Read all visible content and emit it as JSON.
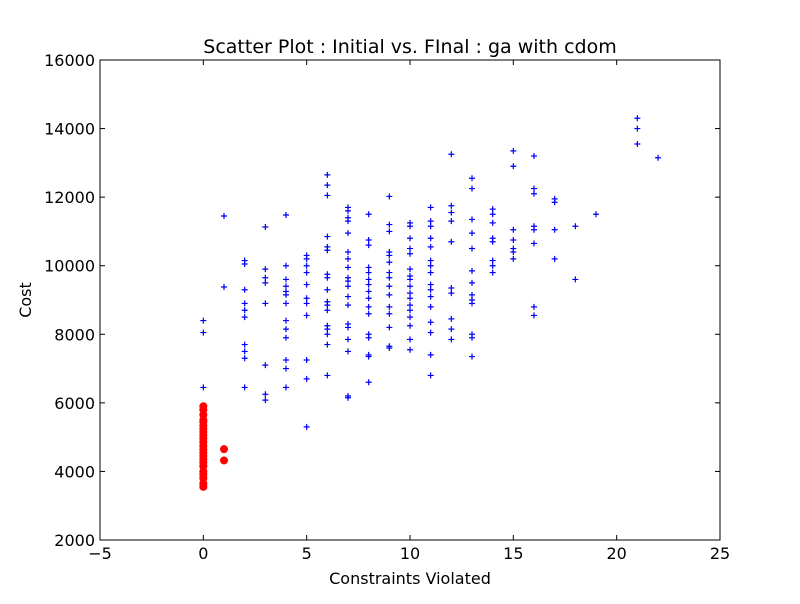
{
  "chart_data": {
    "type": "scatter",
    "title": "Scatter Plot : Initial vs. FInal : ga with cdom",
    "xlabel": "Constraints Violated",
    "ylabel": "Cost",
    "xlim": [
      -5,
      25
    ],
    "ylim": [
      2000,
      16000
    ],
    "xticks": [
      -5,
      0,
      5,
      10,
      15,
      20,
      25
    ],
    "xtick_labels": [
      "−5",
      "0",
      "5",
      "10",
      "15",
      "20",
      "25"
    ],
    "yticks": [
      2000,
      4000,
      6000,
      8000,
      10000,
      12000,
      14000,
      16000
    ],
    "ytick_labels": [
      "2000",
      "4000",
      "6000",
      "8000",
      "10000",
      "12000",
      "14000",
      "16000"
    ],
    "grid": false,
    "legend": "none",
    "series": [
      {
        "marker": "plus",
        "color": "#0000ff",
        "points": [
          [
            0,
            8400
          ],
          [
            0,
            8050
          ],
          [
            0,
            6450
          ],
          [
            1,
            11450
          ],
          [
            1,
            9380
          ],
          [
            2,
            10150
          ],
          [
            2,
            10050
          ],
          [
            2,
            9300
          ],
          [
            2,
            8900
          ],
          [
            2,
            8700
          ],
          [
            2,
            8500
          ],
          [
            2,
            7700
          ],
          [
            2,
            7500
          ],
          [
            2,
            7300
          ],
          [
            2,
            6450
          ],
          [
            3,
            11130
          ],
          [
            3,
            9900
          ],
          [
            3,
            9650
          ],
          [
            3,
            9500
          ],
          [
            3,
            8900
          ],
          [
            3,
            7100
          ],
          [
            3,
            6250
          ],
          [
            3,
            6080
          ],
          [
            4,
            11480
          ],
          [
            4,
            10000
          ],
          [
            4,
            9600
          ],
          [
            4,
            9400
          ],
          [
            4,
            9250
          ],
          [
            4,
            9150
          ],
          [
            4,
            8900
          ],
          [
            4,
            8400
          ],
          [
            4,
            8150
          ],
          [
            4,
            7900
          ],
          [
            4,
            7250
          ],
          [
            4,
            7000
          ],
          [
            4,
            6450
          ],
          [
            5,
            10300
          ],
          [
            5,
            10200
          ],
          [
            5,
            10000
          ],
          [
            5,
            9800
          ],
          [
            5,
            9450
          ],
          [
            5,
            9050
          ],
          [
            5,
            8900
          ],
          [
            5,
            8550
          ],
          [
            5,
            7250
          ],
          [
            5,
            6700
          ],
          [
            5,
            5300
          ],
          [
            6,
            12650
          ],
          [
            6,
            12350
          ],
          [
            6,
            12050
          ],
          [
            6,
            10850
          ],
          [
            6,
            10550
          ],
          [
            6,
            10450
          ],
          [
            6,
            9750
          ],
          [
            6,
            9650
          ],
          [
            6,
            9300
          ],
          [
            6,
            8950
          ],
          [
            6,
            8850
          ],
          [
            6,
            8700
          ],
          [
            6,
            8250
          ],
          [
            6,
            8150
          ],
          [
            6,
            8000
          ],
          [
            6,
            7700
          ],
          [
            6,
            6800
          ],
          [
            7,
            11700
          ],
          [
            7,
            11600
          ],
          [
            7,
            11400
          ],
          [
            7,
            11300
          ],
          [
            7,
            10950
          ],
          [
            7,
            10400
          ],
          [
            7,
            10200
          ],
          [
            7,
            9950
          ],
          [
            7,
            9650
          ],
          [
            7,
            9550
          ],
          [
            7,
            9400
          ],
          [
            7,
            9100
          ],
          [
            7,
            8850
          ],
          [
            7,
            8300
          ],
          [
            7,
            8200
          ],
          [
            7,
            7850
          ],
          [
            7,
            7500
          ],
          [
            7,
            6200
          ],
          [
            7,
            6150
          ],
          [
            8,
            11500
          ],
          [
            8,
            10750
          ],
          [
            8,
            10600
          ],
          [
            8,
            9950
          ],
          [
            8,
            9800
          ],
          [
            8,
            9600
          ],
          [
            8,
            9450
          ],
          [
            8,
            9250
          ],
          [
            8,
            9050
          ],
          [
            8,
            8800
          ],
          [
            8,
            8600
          ],
          [
            8,
            8000
          ],
          [
            8,
            7900
          ],
          [
            8,
            7400
          ],
          [
            8,
            7350
          ],
          [
            8,
            6600
          ],
          [
            9,
            12020
          ],
          [
            9,
            11200
          ],
          [
            9,
            11000
          ],
          [
            9,
            10400
          ],
          [
            9,
            10300
          ],
          [
            9,
            10100
          ],
          [
            9,
            9800
          ],
          [
            9,
            9650
          ],
          [
            9,
            9400
          ],
          [
            9,
            9150
          ],
          [
            9,
            8800
          ],
          [
            9,
            8600
          ],
          [
            9,
            8200
          ],
          [
            9,
            7650
          ],
          [
            9,
            7600
          ],
          [
            10,
            11250
          ],
          [
            10,
            11150
          ],
          [
            10,
            10800
          ],
          [
            10,
            10500
          ],
          [
            10,
            10350
          ],
          [
            10,
            9900
          ],
          [
            10,
            9700
          ],
          [
            10,
            9600
          ],
          [
            10,
            9400
          ],
          [
            10,
            9200
          ],
          [
            10,
            9050
          ],
          [
            10,
            8850
          ],
          [
            10,
            8700
          ],
          [
            10,
            8500
          ],
          [
            10,
            8250
          ],
          [
            10,
            7850
          ],
          [
            10,
            7550
          ],
          [
            11,
            11700
          ],
          [
            11,
            11300
          ],
          [
            11,
            11150
          ],
          [
            11,
            10800
          ],
          [
            11,
            10550
          ],
          [
            11,
            10150
          ],
          [
            11,
            10000
          ],
          [
            11,
            9800
          ],
          [
            11,
            9450
          ],
          [
            11,
            9300
          ],
          [
            11,
            9100
          ],
          [
            11,
            8800
          ],
          [
            11,
            8350
          ],
          [
            11,
            8050
          ],
          [
            11,
            7400
          ],
          [
            11,
            6800
          ],
          [
            12,
            13250
          ],
          [
            12,
            11750
          ],
          [
            12,
            11550
          ],
          [
            12,
            11300
          ],
          [
            12,
            10700
          ],
          [
            12,
            9350
          ],
          [
            12,
            9200
          ],
          [
            12,
            8450
          ],
          [
            12,
            8150
          ],
          [
            12,
            7850
          ],
          [
            13,
            12550
          ],
          [
            13,
            12250
          ],
          [
            13,
            11350
          ],
          [
            13,
            10950
          ],
          [
            13,
            10500
          ],
          [
            13,
            9850
          ],
          [
            13,
            9500
          ],
          [
            13,
            9150
          ],
          [
            13,
            9000
          ],
          [
            13,
            8900
          ],
          [
            13,
            8000
          ],
          [
            13,
            7900
          ],
          [
            13,
            7350
          ],
          [
            14,
            11650
          ],
          [
            14,
            11500
          ],
          [
            14,
            11250
          ],
          [
            14,
            10800
          ],
          [
            14,
            10700
          ],
          [
            14,
            10150
          ],
          [
            14,
            10000
          ],
          [
            14,
            9800
          ],
          [
            15,
            13350
          ],
          [
            15,
            12900
          ],
          [
            15,
            11050
          ],
          [
            15,
            10750
          ],
          [
            15,
            10500
          ],
          [
            15,
            10400
          ],
          [
            15,
            10200
          ],
          [
            16,
            13200
          ],
          [
            16,
            12250
          ],
          [
            16,
            12100
          ],
          [
            16,
            11150
          ],
          [
            16,
            11050
          ],
          [
            16,
            10650
          ],
          [
            16,
            8800
          ],
          [
            16,
            8550
          ],
          [
            17,
            11950
          ],
          [
            17,
            11850
          ],
          [
            17,
            11050
          ],
          [
            17,
            10200
          ],
          [
            18,
            11150
          ],
          [
            18,
            9600
          ],
          [
            19,
            11500
          ],
          [
            21,
            14300
          ],
          [
            21,
            14000
          ],
          [
            21,
            13550
          ],
          [
            22,
            13150
          ]
        ]
      },
      {
        "marker": "circle",
        "color": "#ff0000",
        "points": [
          [
            0,
            5900
          ],
          [
            0,
            5800
          ],
          [
            0,
            5650
          ],
          [
            0,
            5500
          ],
          [
            0,
            5450
          ],
          [
            0,
            5350
          ],
          [
            0,
            5250
          ],
          [
            0,
            5150
          ],
          [
            0,
            5050
          ],
          [
            0,
            4950
          ],
          [
            0,
            4850
          ],
          [
            0,
            4750
          ],
          [
            0,
            4650
          ],
          [
            0,
            4550
          ],
          [
            0,
            4450
          ],
          [
            0,
            4350
          ],
          [
            0,
            4250
          ],
          [
            0,
            4150
          ],
          [
            0,
            4000
          ],
          [
            0,
            3900
          ],
          [
            0,
            3800
          ],
          [
            0,
            3650
          ],
          [
            0,
            3550
          ],
          [
            1,
            4650
          ],
          [
            1,
            4320
          ]
        ]
      }
    ]
  }
}
